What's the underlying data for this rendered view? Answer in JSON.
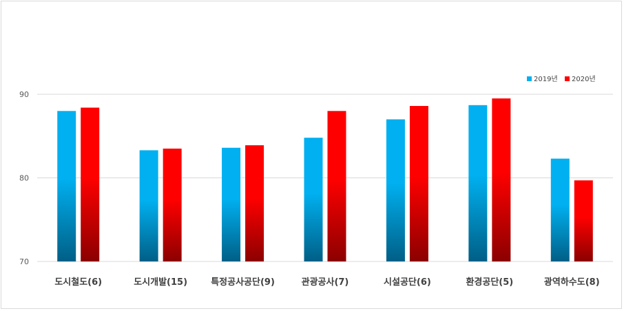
{
  "chart_data": {
    "type": "bar",
    "categories": [
      "도시철도(6)",
      "도시개발(15)",
      "특정공사공단(9)",
      "관광공사(7)",
      "시설공단(6)",
      "환경공단(5)",
      "광역하수도(8)"
    ],
    "series": [
      {
        "name": "2019년",
        "values": [
          88.0,
          83.3,
          83.6,
          84.8,
          87.0,
          88.7,
          82.3
        ],
        "color_top": "#00b0f0",
        "color_bottom": "#005f86"
      },
      {
        "name": "2020년",
        "values": [
          88.4,
          83.5,
          83.9,
          88.0,
          88.6,
          89.5,
          79.7
        ],
        "color_top": "#ff0000",
        "color_bottom": "#8b0000"
      }
    ],
    "ylim": [
      70,
      95
    ],
    "yticks": [
      "70",
      "80",
      "90"
    ],
    "title": "",
    "xlabel": "",
    "ylabel": "",
    "grid": true,
    "legend_position": "top-right"
  }
}
